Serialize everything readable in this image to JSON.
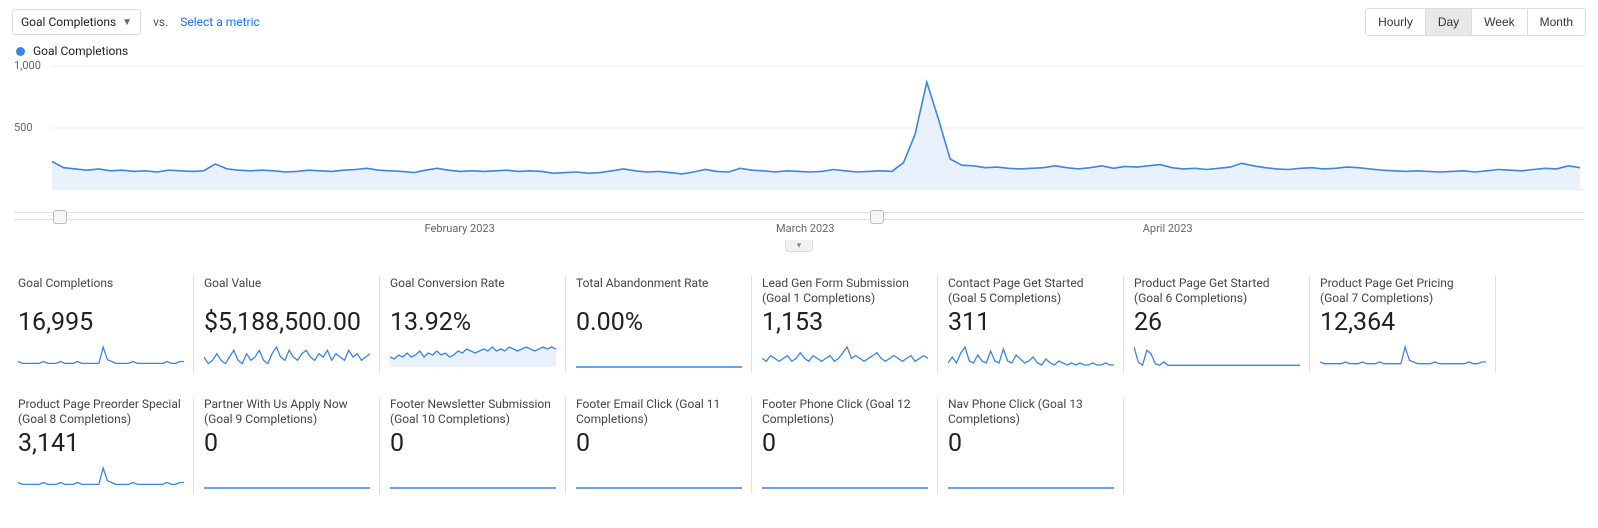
{
  "controls": {
    "primary_metric": "Goal Completions",
    "vs_label": "vs.",
    "select_metric": "Select a metric",
    "granularity": [
      "Hourly",
      "Day",
      "Week",
      "Month"
    ],
    "granularity_active": 1
  },
  "legend": {
    "label": "Goal Completions",
    "color": "#3c86e0"
  },
  "main_chart": {
    "type": "area",
    "line_color": "#3c86e0",
    "fill_color": "#e9f2fc",
    "grid_color": "#ededed",
    "ylim": [
      0,
      1000
    ],
    "yticks": [
      {
        "v": 500,
        "label": "500"
      },
      {
        "v": 1000,
        "label": "1,000"
      }
    ],
    "x_axis_labels": [
      {
        "pos": 0.27,
        "label": "February 2023"
      },
      {
        "pos": 0.5,
        "label": "March 2023"
      },
      {
        "pos": 0.74,
        "label": "April 2023"
      }
    ],
    "slider_handles": [
      0.005,
      0.54
    ],
    "values": [
      230,
      180,
      170,
      160,
      170,
      155,
      160,
      150,
      155,
      145,
      160,
      155,
      150,
      155,
      210,
      170,
      160,
      155,
      160,
      155,
      145,
      150,
      160,
      155,
      150,
      160,
      165,
      175,
      160,
      155,
      150,
      140,
      160,
      175,
      160,
      150,
      155,
      150,
      155,
      160,
      150,
      155,
      150,
      135,
      140,
      145,
      135,
      140,
      155,
      170,
      155,
      145,
      150,
      140,
      130,
      145,
      165,
      150,
      145,
      175,
      160,
      155,
      145,
      155,
      150,
      145,
      150,
      165,
      155,
      145,
      150,
      155,
      150,
      220,
      450,
      870,
      570,
      250,
      200,
      195,
      180,
      185,
      175,
      170,
      175,
      180,
      195,
      180,
      170,
      180,
      195,
      175,
      190,
      185,
      195,
      205,
      180,
      170,
      175,
      165,
      175,
      185,
      215,
      195,
      180,
      170,
      165,
      175,
      180,
      170,
      175,
      185,
      180,
      170,
      160,
      155,
      150,
      155,
      150,
      145,
      150,
      155,
      145,
      155,
      165,
      160,
      155,
      165,
      175,
      170,
      195,
      180
    ]
  },
  "cards": [
    {
      "title": "Goal Completions",
      "value": "16,995",
      "spark": "a"
    },
    {
      "title": "Goal Value",
      "value": "$5,188,500.00",
      "spark": "b"
    },
    {
      "title": "Goal Conversion Rate",
      "value": "13.92%",
      "spark": "c"
    },
    {
      "title": "Total Abandonment Rate",
      "value": "0.00%",
      "spark": "flat"
    },
    {
      "title": "Lead Gen Form Submission (Goal 1 Completions)",
      "value": "1,153",
      "spark": "d"
    },
    {
      "title": "Contact Page Get Started (Goal 5 Completions)",
      "value": "311",
      "spark": "e"
    },
    {
      "title": "Product Page Get Started (Goal 6 Completions)",
      "value": "26",
      "spark": "f"
    },
    {
      "title": "Product Page Get Pricing (Goal 7 Completions)",
      "value": "12,364",
      "spark": "g"
    },
    {
      "title": "Product Page Preorder Special (Goal 8 Completions)",
      "value": "3,141",
      "spark": "h"
    },
    {
      "title": "Partner With Us Apply Now (Goal 9 Completions)",
      "value": "0",
      "spark": "flat"
    },
    {
      "title": "Footer Newsletter Submission (Goal 10 Completions)",
      "value": "0",
      "spark": "flat"
    },
    {
      "title": "Footer Email Click (Goal 11 Completions)",
      "value": "0",
      "spark": "flat"
    },
    {
      "title": "Footer Phone Click (Goal 12 Completions)",
      "value": "0",
      "spark": "flat"
    },
    {
      "title": "Nav Phone Click (Goal 13 Completions)",
      "value": "0",
      "spark": "flat"
    }
  ],
  "sparklines": {
    "flat": [
      0
    ],
    "a": [
      3,
      2,
      2,
      2,
      2,
      2,
      3,
      2,
      2,
      2,
      3,
      2,
      2,
      2,
      3,
      2,
      2,
      2,
      2,
      2,
      11,
      4,
      3,
      2,
      2,
      2,
      2,
      3,
      2,
      2,
      2,
      2,
      2,
      2,
      2,
      3,
      2,
      2,
      3,
      3
    ],
    "b": [
      3,
      1,
      2,
      4,
      2,
      1,
      3,
      5,
      2,
      1,
      4,
      2,
      3,
      5,
      2,
      1,
      4,
      6,
      3,
      2,
      5,
      3,
      2,
      4,
      5,
      3,
      2,
      4,
      3,
      5,
      2,
      4,
      3,
      2,
      5,
      3,
      4,
      2,
      3,
      4
    ],
    "c": [
      5,
      4,
      6,
      5,
      7,
      5,
      6,
      8,
      5,
      7,
      6,
      8,
      6,
      7,
      5,
      6,
      8,
      7,
      9,
      8,
      7,
      8,
      9,
      8,
      10,
      8,
      9,
      8,
      10,
      9,
      8,
      9,
      10,
      9,
      8,
      9,
      10,
      9,
      10,
      9
    ],
    "d": [
      3,
      2,
      4,
      3,
      2,
      3,
      4,
      2,
      3,
      5,
      3,
      2,
      4,
      3,
      2,
      3,
      4,
      2,
      3,
      5,
      7,
      3,
      4,
      3,
      2,
      3,
      4,
      5,
      3,
      2,
      3,
      4,
      3,
      2,
      3,
      4,
      2,
      3,
      4,
      3
    ],
    "e": [
      2,
      5,
      2,
      7,
      10,
      3,
      2,
      6,
      3,
      2,
      8,
      3,
      2,
      9,
      3,
      2,
      6,
      4,
      2,
      3,
      5,
      2,
      1,
      4,
      2,
      1,
      3,
      2,
      1,
      2,
      1,
      2,
      1,
      1,
      2,
      1,
      1,
      2,
      1,
      1
    ],
    "f": [
      12,
      3,
      1,
      10,
      8,
      2,
      1,
      3,
      1,
      1,
      1,
      1,
      1,
      1,
      1,
      1,
      1,
      1,
      1,
      1,
      1,
      1,
      1,
      1,
      1,
      1,
      1,
      1,
      1,
      1,
      1,
      1,
      1,
      1,
      1,
      1,
      1,
      1,
      1,
      1
    ],
    "g": [
      3,
      2,
      2,
      2,
      2,
      2,
      3,
      2,
      2,
      2,
      3,
      2,
      2,
      2,
      3,
      2,
      2,
      2,
      2,
      2,
      12,
      4,
      3,
      2,
      2,
      2,
      2,
      3,
      2,
      2,
      2,
      2,
      2,
      2,
      2,
      3,
      2,
      2,
      3,
      3
    ],
    "h": [
      3,
      2,
      2,
      2,
      2,
      2,
      3,
      2,
      2,
      2,
      3,
      2,
      2,
      2,
      3,
      2,
      2,
      2,
      2,
      2,
      11,
      4,
      3,
      2,
      2,
      2,
      2,
      3,
      2,
      2,
      2,
      2,
      2,
      2,
      2,
      3,
      2,
      2,
      3,
      3
    ]
  },
  "spark_style": {
    "line_color": "#3c86e0",
    "fill_color": "#e9f2fc",
    "fill_on": [
      "c"
    ]
  }
}
